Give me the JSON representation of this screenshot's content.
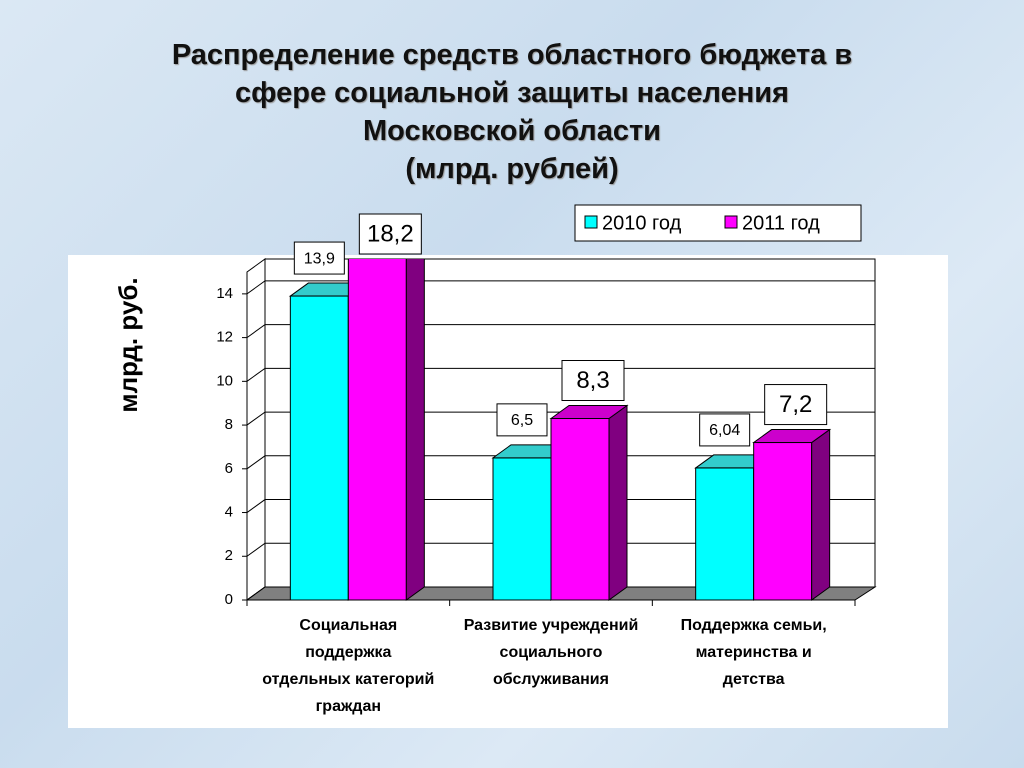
{
  "chart_data": {
    "type": "bar3d",
    "title": [
      "Распределение средств областного бюджета в",
      "сфере социальной защиты населения",
      "Московской области"
    ],
    "subtitle": "(млрд. рублей)",
    "y_axis_label": "млрд. руб.",
    "categories": [
      "Социальная поддержка отдельных категорий граждан",
      "Развитие учреждений социального обслуживания",
      "Поддержка семьи, материнства и детства"
    ],
    "series": [
      {
        "name": "2010 год",
        "color": "#00ffff",
        "values": [
          13.9,
          6.5,
          6.04
        ],
        "value_labels": [
          "13,9",
          "6,5",
          "6,04"
        ]
      },
      {
        "name": "2011 год",
        "color": "#ff00ff",
        "values": [
          18.2,
          8.3,
          7.2
        ],
        "value_labels": [
          "18,2",
          "8,3",
          "7,2"
        ]
      }
    ],
    "ylim": [
      0,
      15
    ],
    "yticks": [
      0,
      2,
      4,
      6,
      8,
      10,
      12,
      14
    ],
    "grid": true,
    "legend": "top-right"
  }
}
